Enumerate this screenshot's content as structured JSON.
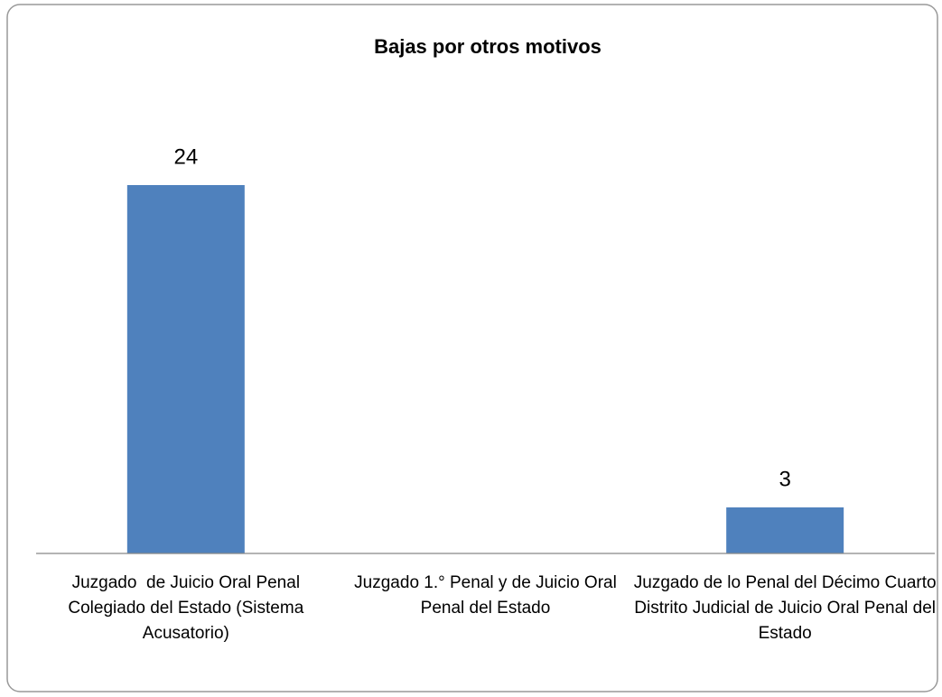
{
  "chart_data": {
    "type": "bar",
    "title": "Bajas por otros motivos",
    "categories": [
      "Juzgado  de Juicio Oral Penal Colegiado del Estado (Sistema Acusatorio)",
      "Juzgado 1.° Penal y de Juicio Oral Penal del Estado",
      "Juzgado de lo Penal del Décimo Cuarto Distrito Judicial de Juicio Oral Penal del Estado"
    ],
    "values": [
      24,
      null,
      3
    ],
    "color": "#4f81bd",
    "ylim": [
      0,
      30
    ]
  }
}
